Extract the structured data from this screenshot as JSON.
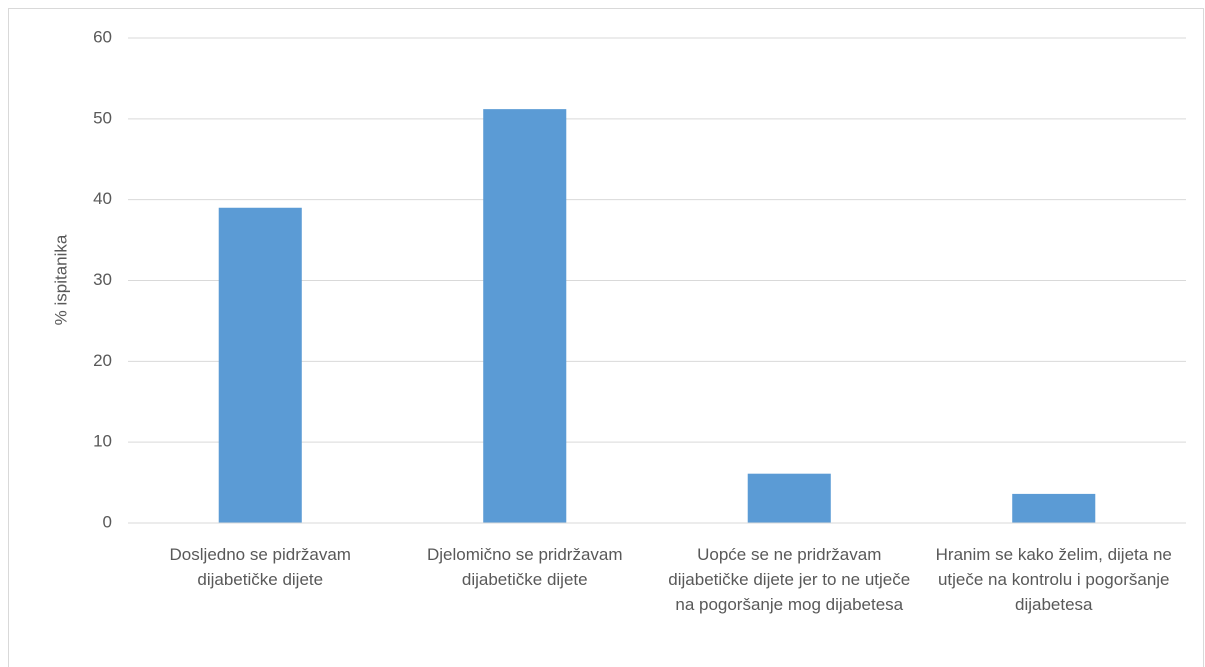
{
  "chart_data": {
    "type": "bar",
    "y_label": "% ispitanika",
    "categories": [
      "Dosljedno se pidržavam dijabetičke dijete",
      "Djelomično se pridržavam dijabetičke dijete",
      "Uopće se ne pridržavam dijabetičke dijete jer to ne utječe na pogoršanje mog dijabetesa",
      "Hranim se kako želim, dijeta ne utječe na kontrolu i pogoršanje dijabetesa"
    ],
    "values": [
      39,
      51.2,
      6.1,
      3.6
    ],
    "color": "#5b9bd5",
    "ylim": [
      0,
      60
    ],
    "yticks": [
      0,
      10,
      20,
      30,
      40,
      50,
      60
    ],
    "grid": true
  }
}
